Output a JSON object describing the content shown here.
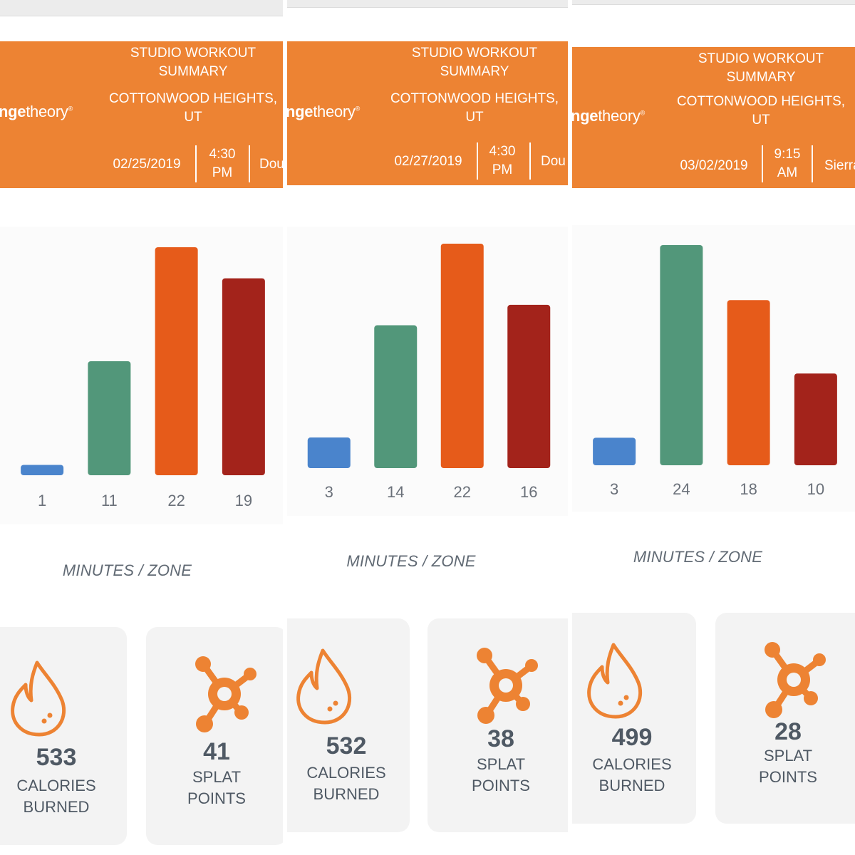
{
  "brand": {
    "logo_bold": "nge",
    "logo_light": "theory",
    "trademark": "®"
  },
  "panels": [
    {
      "header": {
        "title_line1": "STUDIO WORKOUT",
        "title_line2": "SUMMARY",
        "location_line1": "COTTONWOOD HEIGHTS,",
        "location_line2": "UT",
        "date": "02/25/2019",
        "time_line1": "4:30",
        "time_line2": "PM",
        "coach": "Dou"
      },
      "chart_data": {
        "type": "bar",
        "categories": [
          "1",
          "11",
          "22",
          "19"
        ],
        "values": [
          1,
          11,
          22,
          19
        ],
        "colors": [
          "#4a84cc",
          "#52977a",
          "#e65b1a",
          "#a3231b"
        ],
        "ylim": [
          0,
          22
        ]
      },
      "xlabel": "MINUTES / ZONE",
      "calories": {
        "value": "533",
        "label_line1": "CALORIES",
        "label_line2": "BURNED",
        "icon": "flame-icon"
      },
      "splat": {
        "value": "41",
        "label_line1": "SPLAT",
        "label_line2": "POINTS",
        "icon": "splat-icon"
      }
    },
    {
      "header": {
        "title_line1": "STUDIO WORKOUT",
        "title_line2": "SUMMARY",
        "location_line1": "COTTONWOOD HEIGHTS,",
        "location_line2": "UT",
        "date": "02/27/2019",
        "time_line1": "4:30",
        "time_line2": "PM",
        "coach": "Dou"
      },
      "chart_data": {
        "type": "bar",
        "categories": [
          "3",
          "14",
          "22",
          "16"
        ],
        "values": [
          3,
          14,
          22,
          16
        ],
        "colors": [
          "#4a84cc",
          "#52977a",
          "#e65b1a",
          "#a3231b"
        ],
        "ylim": [
          0,
          22
        ]
      },
      "xlabel": "MINUTES / ZONE",
      "calories": {
        "value": "532",
        "label_line1": "CALORIES",
        "label_line2": "BURNED",
        "icon": "flame-icon"
      },
      "splat": {
        "value": "38",
        "label_line1": "SPLAT",
        "label_line2": "POINTS",
        "icon": "splat-icon"
      }
    },
    {
      "header": {
        "title_line1": "STUDIO WORKOUT",
        "title_line2": "SUMMARY",
        "location_line1": "COTTONWOOD HEIGHTS,",
        "location_line2": "UT",
        "date": "03/02/2019",
        "time_line1": "9:15",
        "time_line2": "AM",
        "coach": "Sierra"
      },
      "chart_data": {
        "type": "bar",
        "categories": [
          "3",
          "24",
          "18",
          "10"
        ],
        "values": [
          3,
          24,
          18,
          10
        ],
        "colors": [
          "#4a84cc",
          "#52977a",
          "#e65b1a",
          "#a3231b"
        ],
        "ylim": [
          0,
          24
        ]
      },
      "xlabel": "MINUTES / ZONE",
      "calories": {
        "value": "499",
        "label_line1": "CALORIES",
        "label_line2": "BURNED",
        "icon": "flame-icon"
      },
      "splat": {
        "value": "28",
        "label_line1": "SPLAT",
        "label_line2": "POINTS",
        "icon": "splat-icon"
      }
    }
  ]
}
